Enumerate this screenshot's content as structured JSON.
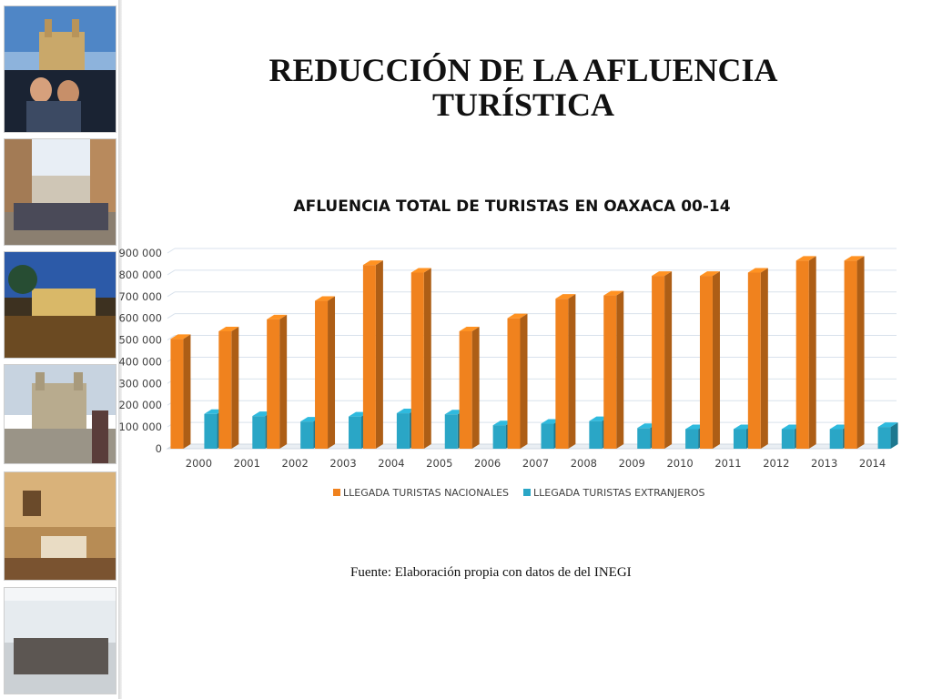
{
  "slide": {
    "title_line1": "REDUCCIÓN DE LA AFLUENCIA",
    "title_line2": "TURÍSTICA",
    "source": "Fuente: Elaboración propia con datos de del INEGI"
  },
  "photos": [
    {
      "name": "photo-cathedral-tourists"
    },
    {
      "name": "photo-street-crowd"
    },
    {
      "name": "photo-night-patio"
    },
    {
      "name": "photo-church-plaza"
    },
    {
      "name": "photo-hotel-room"
    },
    {
      "name": "photo-airport-crowd"
    }
  ],
  "chart_data": {
    "type": "bar",
    "title": "AFLUENCIA TOTAL DE TURISTAS EN OAXACA 00-14",
    "xlabel": "",
    "ylabel": "",
    "categories": [
      "2000",
      "2001",
      "2002",
      "2003",
      "2004",
      "2005",
      "2006",
      "2007",
      "2008",
      "2009",
      "2010",
      "2011",
      "2012",
      "2013",
      "2014"
    ],
    "series": [
      {
        "name": "LLEGADA TURISTAS NACIONALES",
        "color": "#f0821e",
        "values": [
          505000,
          540000,
          595000,
          680000,
          845000,
          810000,
          540000,
          600000,
          690000,
          705000,
          795000,
          795000,
          810000,
          865000,
          865000
        ]
      },
      {
        "name": "LLEGADA TURISTAS EXTRANJEROS",
        "color": "#2aa6c6",
        "values": [
          160000,
          150000,
          125000,
          148000,
          163000,
          158000,
          108000,
          115000,
          127000,
          95000,
          90000,
          90000,
          90000,
          90000,
          100000
        ]
      }
    ],
    "ylim": [
      0,
      900000
    ],
    "yticks": [
      0,
      100000,
      200000,
      300000,
      400000,
      500000,
      600000,
      700000,
      800000,
      900000
    ],
    "ytick_labels": [
      "0",
      "100 000",
      "200 000",
      "300 000",
      "400 000",
      "500 000",
      "600 000",
      "700 000",
      "800 000",
      "900 000"
    ],
    "grid": true,
    "legend_position": "bottom"
  }
}
